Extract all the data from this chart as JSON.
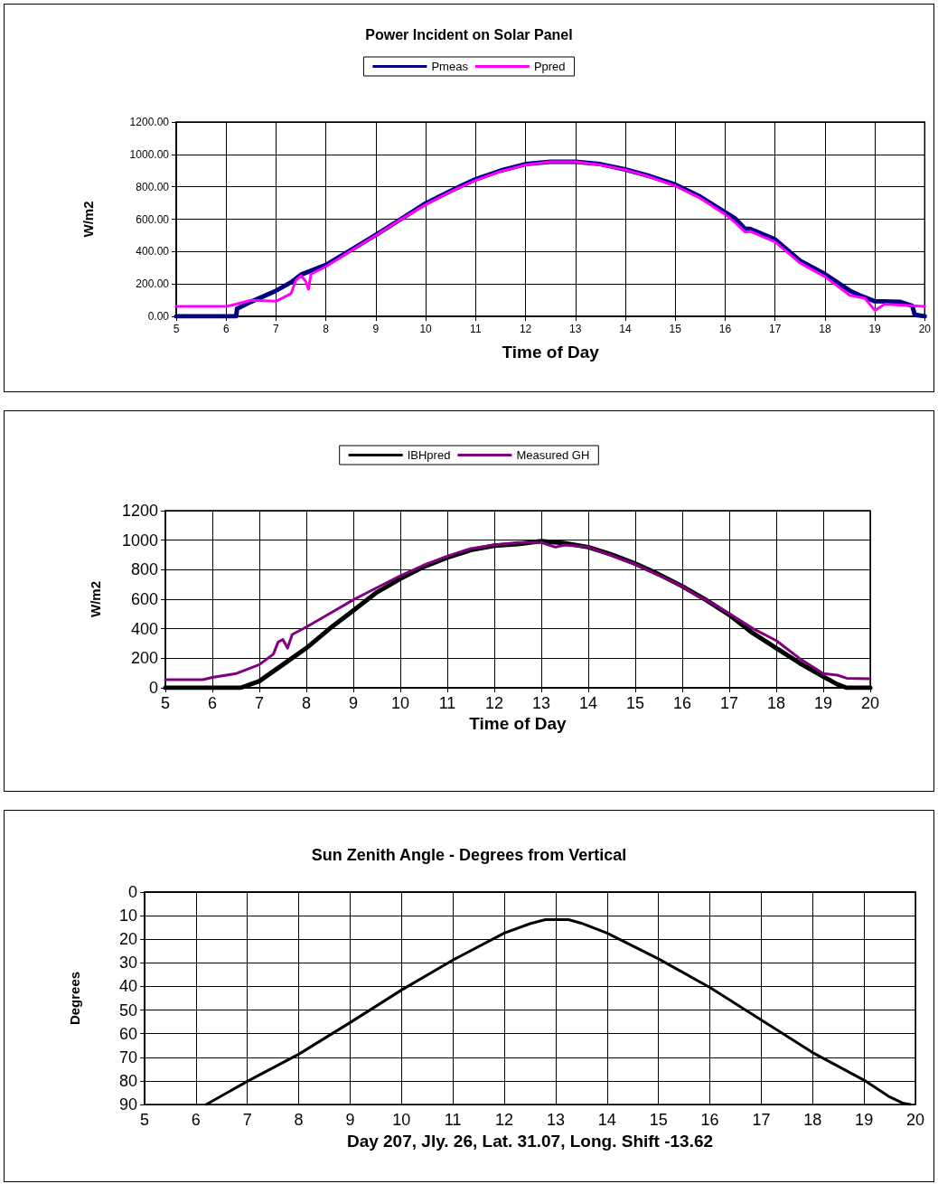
{
  "chart_data": [
    {
      "type": "line",
      "title": "Power Incident on Solar Panel",
      "xlabel": "Time of Day",
      "ylabel": "W/m2",
      "xlim": [
        5,
        20
      ],
      "xticks": [
        5,
        6,
        7,
        8,
        9,
        10,
        11,
        12,
        13,
        14,
        15,
        16,
        17,
        18,
        19,
        20
      ],
      "ylim": [
        0,
        1200
      ],
      "yticks": [
        {
          "value": 0,
          "label": "0.00"
        },
        {
          "value": 200,
          "label": "200.00"
        },
        {
          "value": 400,
          "label": "400.00"
        },
        {
          "value": 600,
          "label": "600.00"
        },
        {
          "value": 800,
          "label": "800.00"
        },
        {
          "value": 1000,
          "label": "1000.00"
        },
        {
          "value": 1200,
          "label": "1200.00"
        }
      ],
      "grid": true,
      "legend": "top",
      "marker": "none",
      "line_style": "solid",
      "series": [
        {
          "name": "Pmeas",
          "color": "#000080",
          "x": [
            5,
            6,
            6.2,
            6.22,
            6.5,
            7,
            7.3,
            7.5,
            8,
            8.5,
            9,
            9.5,
            10,
            10.5,
            11,
            11.5,
            12,
            12.5,
            13,
            13.5,
            14,
            14.5,
            15,
            15.5,
            16,
            16.2,
            16.4,
            16.5,
            17,
            17.5,
            18,
            18.5,
            18.7,
            19,
            19.5,
            19.75,
            19.8,
            20
          ],
          "values": [
            0,
            0,
            0,
            48,
            90,
            158,
            210,
            257,
            317,
            410,
            503,
            600,
            698,
            775,
            847,
            900,
            940,
            955,
            955,
            940,
            907,
            865,
            814,
            739,
            642,
            605,
            540,
            540,
            475,
            344,
            261,
            158,
            130,
            93,
            90,
            65,
            10,
            0
          ]
        },
        {
          "name": "Ppred",
          "color": "#ff00ff",
          "x": [
            5,
            6,
            6.2,
            6.5,
            7,
            7.3,
            7.4,
            7.5,
            7.6,
            7.65,
            7.7,
            8,
            8.5,
            9,
            9.5,
            10,
            10.5,
            11,
            11.5,
            12,
            12.5,
            13,
            13.5,
            14,
            14.5,
            15,
            15.5,
            16,
            16.2,
            16.4,
            16.5,
            17,
            17.5,
            18,
            18.5,
            18.8,
            19,
            19.2,
            20
          ],
          "values": [
            61,
            61,
            75,
            99,
            93,
            140,
            223,
            251,
            214,
            168,
            261,
            307,
            405,
            500,
            598,
            690,
            770,
            840,
            895,
            935,
            955,
            955,
            935,
            905,
            860,
            805,
            730,
            630,
            580,
            521,
            525,
            460,
            330,
            245,
            130,
            112,
            37,
            75,
            61
          ]
        }
      ]
    },
    {
      "type": "line",
      "xlabel": "Time of Day",
      "ylabel": "W/m2",
      "xlim": [
        5,
        20
      ],
      "xticks": [
        5,
        6,
        7,
        8,
        9,
        10,
        11,
        12,
        13,
        14,
        15,
        16,
        17,
        18,
        19,
        20
      ],
      "ylim": [
        0,
        1200
      ],
      "yticks": [
        0,
        200,
        400,
        600,
        800,
        1000,
        1200
      ],
      "grid": true,
      "legend": "top",
      "marker": "none",
      "line_style": "solid",
      "series": [
        {
          "name": "IBHpred",
          "color": "#000000",
          "x": [
            5,
            6.6,
            7,
            7.5,
            8,
            8.5,
            9,
            9.5,
            10,
            10.5,
            11,
            11.5,
            12,
            12.5,
            13,
            13.5,
            14,
            14.5,
            15,
            15.5,
            16,
            16.5,
            17,
            17.5,
            18,
            18.5,
            19,
            19.3,
            19.5,
            20
          ],
          "values": [
            0,
            0,
            45,
            157,
            269,
            402,
            524,
            647,
            739,
            820,
            882,
            933,
            963,
            973,
            994,
            980,
            953,
            902,
            841,
            769,
            688,
            596,
            494,
            371,
            269,
            167,
            76,
            24,
            0,
            0
          ]
        },
        {
          "name": "Measured GH",
          "color": "#800080",
          "x": [
            5,
            5.8,
            6,
            6.5,
            7,
            7.3,
            7.4,
            7.5,
            7.6,
            7.7,
            8,
            8.5,
            9,
            9.5,
            10,
            10.5,
            11,
            11.5,
            12,
            12.5,
            13,
            13.3,
            13.5,
            14,
            15,
            16,
            16.3,
            16.5,
            17,
            17.5,
            18,
            18.5,
            19,
            19.3,
            19.5,
            20
          ],
          "values": [
            55,
            55,
            70,
            96,
            157,
            229,
            310,
            327,
            269,
            361,
            412,
            504,
            596,
            678,
            759,
            831,
            892,
            943,
            967,
            984,
            984,
            953,
            967,
            953,
            837,
            688,
            627,
            596,
            504,
            402,
            320,
            198,
            96,
            86,
            65,
            61
          ]
        }
      ]
    },
    {
      "type": "line",
      "title": "Sun Zenith Angle - Degrees from Vertical",
      "xlabel": "Day 207, Jly. 26, Lat. 31.07, Long. Shift -13.62",
      "ylabel": "Degrees",
      "xlim": [
        5,
        20
      ],
      "xticks": [
        5,
        6,
        7,
        8,
        9,
        10,
        11,
        12,
        13,
        14,
        15,
        16,
        17,
        18,
        19,
        20
      ],
      "ylim": [
        90,
        0
      ],
      "yticks": [
        0,
        10,
        20,
        30,
        40,
        50,
        60,
        70,
        80,
        90
      ],
      "grid": true,
      "marker": "none",
      "line_style": "solid",
      "series": [
        {
          "color": "#000000",
          "x": [
            6.2,
            7,
            8,
            9,
            10,
            11,
            12,
            12.5,
            12.8,
            13.25,
            13.5,
            14,
            15,
            16,
            17,
            18,
            19,
            19.5,
            19.75,
            19.9
          ],
          "values": [
            90,
            80.2,
            68.7,
            55.3,
            41.5,
            28.8,
            17.4,
            13.4,
            11.7,
            11.7,
            13.2,
            17.4,
            28.3,
            40.4,
            54.2,
            68,
            79.7,
            86.8,
            89.4,
            90
          ]
        }
      ]
    }
  ]
}
